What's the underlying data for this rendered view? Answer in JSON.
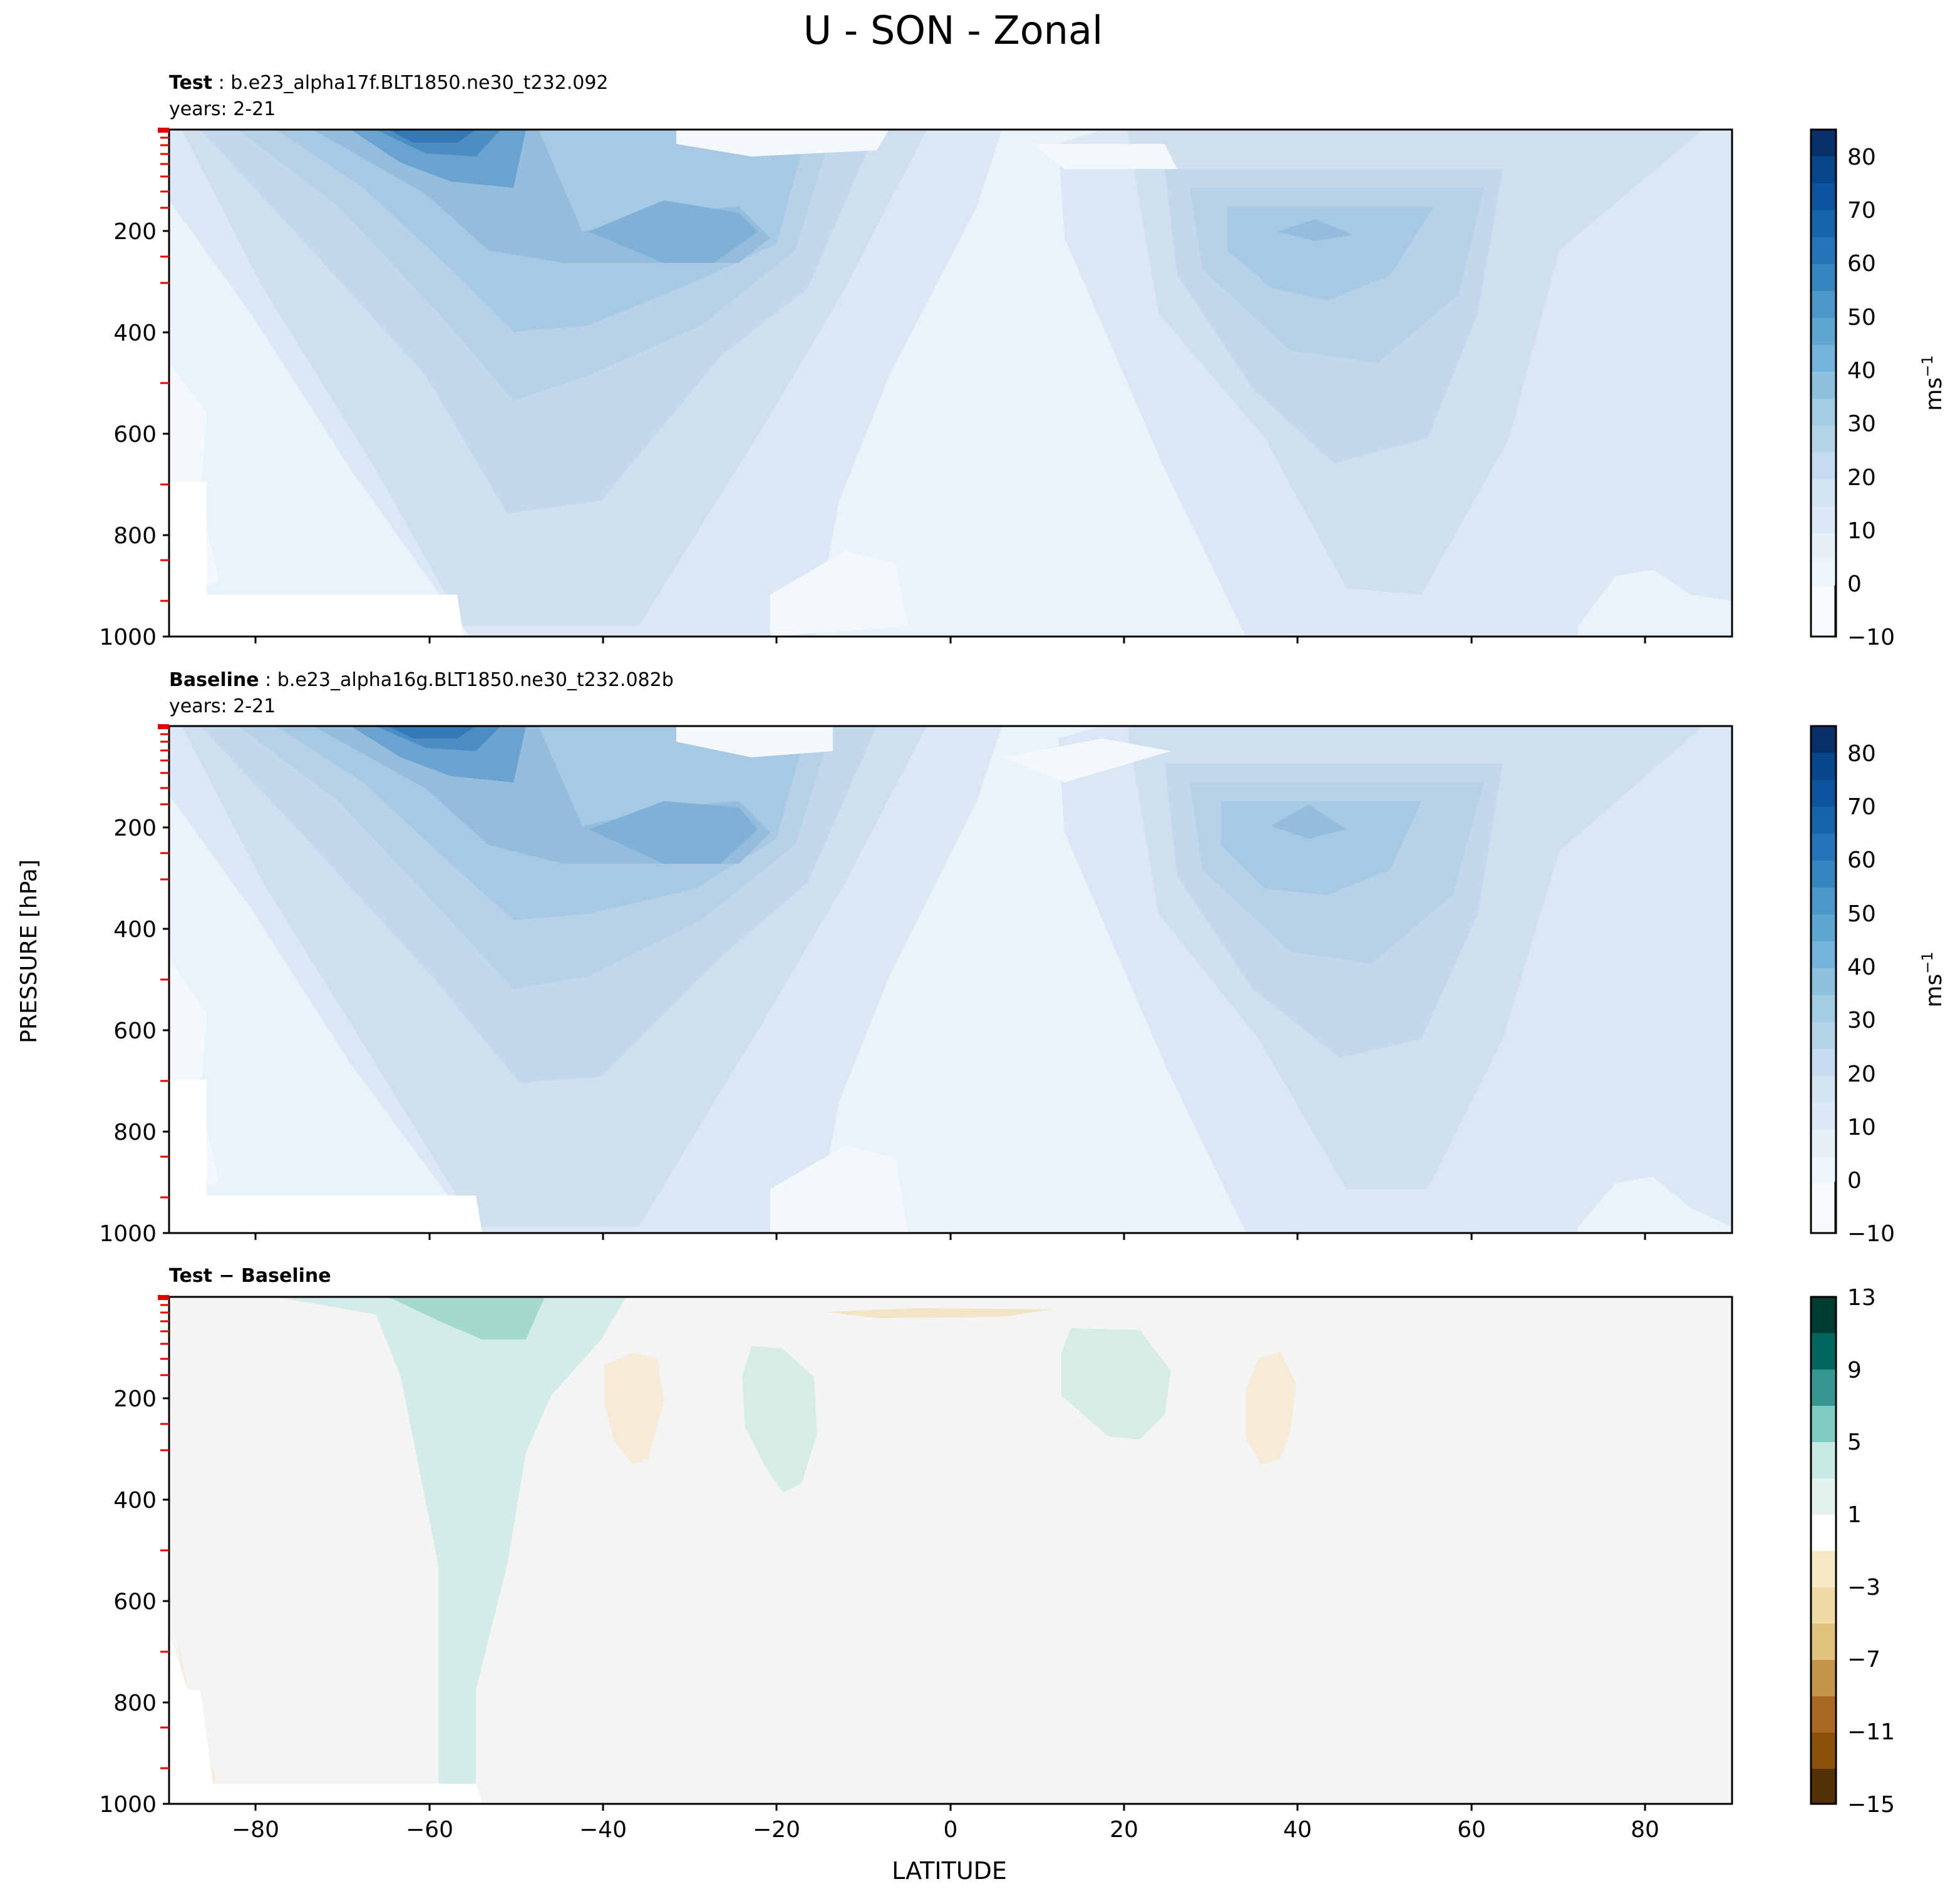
{
  "figure": {
    "title": "U - SON - Zonal",
    "ylabel_shared": "PRESSURE [hPa]",
    "xlabel": "LATITUDE"
  },
  "panels": [
    {
      "id": "test",
      "label_bold": "Test",
      "label_rest": " : b.e23_alpha17f.BLT1850.ne30_t232.092",
      "years": "years: 2-21",
      "colorbar_label": "ms",
      "colorbar_exp": "−1",
      "colorbar_ticks": [
        "−10",
        "0",
        "10",
        "20",
        "30",
        "40",
        "50",
        "60",
        "70",
        "80"
      ]
    },
    {
      "id": "baseline",
      "label_bold": "Baseline",
      "label_rest": " : b.e23_alpha16g.BLT1850.ne30_t232.082b",
      "years": "years: 2-21",
      "colorbar_label": "ms",
      "colorbar_exp": "−1",
      "colorbar_ticks": [
        "−10",
        "0",
        "10",
        "20",
        "30",
        "40",
        "50",
        "60",
        "70",
        "80"
      ]
    },
    {
      "id": "diff",
      "label_bold": "Test − Baseline",
      "label_rest": "",
      "years": "",
      "colorbar_label": "",
      "colorbar_exp": "",
      "colorbar_ticks": [
        "−15",
        "−11",
        "−7",
        "−3",
        "1",
        "5",
        "9",
        "13"
      ]
    }
  ],
  "chart_data": [
    {
      "type": "contourf",
      "title": "Test : b.e23_alpha17f.BLT1850.ne30_t232.092",
      "x_ticks": [
        -80,
        -60,
        -40,
        -20,
        0,
        20,
        40,
        60,
        80
      ],
      "x_tick_labels": [
        "−80",
        "−60",
        "−40",
        "−20",
        "0",
        "20",
        "40",
        "60",
        "80"
      ],
      "xlim": [
        -90,
        90
      ],
      "y_ticks": [
        200,
        400,
        600,
        800,
        1000
      ],
      "y_tick_labels": [
        "200",
        "400",
        "600",
        "800",
        "1000"
      ],
      "ylim": [
        1000,
        0
      ],
      "levels": [
        -10,
        -5,
        0,
        5,
        10,
        15,
        20,
        25,
        30,
        35,
        40,
        45,
        50,
        55,
        60,
        65,
        70,
        75,
        80,
        85
      ],
      "colormap": "Blues",
      "jets": [
        {
          "name": "SH jet core",
          "lat": -30,
          "pressure": 200,
          "max_u": 35
        },
        {
          "name": "SH stratospheric jet",
          "lat": -60,
          "pressure": 10,
          "max_u": 55
        },
        {
          "name": "NH jet core",
          "lat": 42,
          "pressure": 200,
          "max_u": 30
        }
      ]
    },
    {
      "type": "contourf",
      "title": "Baseline : b.e23_alpha16g.BLT1850.ne30_t232.082b",
      "x_ticks": [
        -80,
        -60,
        -40,
        -20,
        0,
        20,
        40,
        60,
        80
      ],
      "xlim": [
        -90,
        90
      ],
      "y_ticks": [
        200,
        400,
        600,
        800,
        1000
      ],
      "ylim": [
        1000,
        0
      ],
      "levels": [
        -10,
        -5,
        0,
        5,
        10,
        15,
        20,
        25,
        30,
        35,
        40,
        45,
        50,
        55,
        60,
        65,
        70,
        75,
        80,
        85
      ],
      "colormap": "Blues",
      "jets": [
        {
          "name": "SH jet core",
          "lat": -30,
          "pressure": 200,
          "max_u": 35
        },
        {
          "name": "SH stratospheric jet",
          "lat": -60,
          "pressure": 10,
          "max_u": 55
        },
        {
          "name": "NH jet core",
          "lat": 42,
          "pressure": 200,
          "max_u": 30
        }
      ]
    },
    {
      "type": "contourf",
      "title": "Test − Baseline",
      "x_ticks": [
        -80,
        -60,
        -40,
        -20,
        0,
        20,
        40,
        60,
        80
      ],
      "xlim": [
        -90,
        90
      ],
      "y_ticks": [
        200,
        400,
        600,
        800,
        1000
      ],
      "ylim": [
        1000,
        0
      ],
      "levels": [
        -15,
        -13,
        -11,
        -9,
        -7,
        -5,
        -3,
        -1,
        1,
        3,
        5,
        7,
        9,
        11,
        13
      ],
      "colormap": "BrBG",
      "features": [
        {
          "name": "positive band SH",
          "lat_range": [
            -60,
            -45
          ],
          "sign": "+"
        },
        {
          "name": "positive stratospheric",
          "lat_range": [
            -60,
            -45
          ],
          "pressure": 20,
          "sign": "+"
        },
        {
          "name": "negative patch",
          "lat": -37,
          "pressure": 300,
          "sign": "-"
        },
        {
          "name": "positive patch",
          "lat": -20,
          "pressure": 250,
          "sign": "+"
        },
        {
          "name": "positive patch",
          "lat": 18,
          "pressure": 170,
          "sign": "+"
        },
        {
          "name": "negative patch",
          "lat": 37,
          "pressure": 250,
          "sign": "-"
        }
      ]
    }
  ]
}
